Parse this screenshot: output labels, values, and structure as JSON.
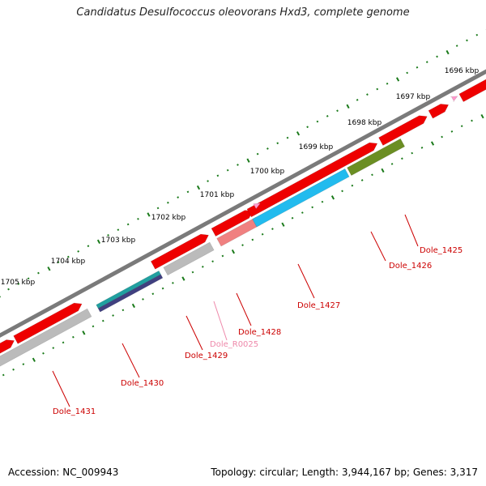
{
  "title": "Candidatus Desulfococcus oleovorans Hxd3, complete genome",
  "footer": {
    "accession": "Accession: NC_009943",
    "summary": "Topology: circular; Length: 3,944,167 bp; Genes: 3,317"
  },
  "colors": {
    "backbone": "#7a7a7a",
    "cds": "#ee0000",
    "pseudo": "#bbbbbb",
    "rna": "#ff99cc",
    "cyan": "#22bbee",
    "olive": "#6b8e23",
    "teal": "#20a0a0",
    "navy": "#404080",
    "pink_light": "#f08080",
    "ticks": "#1a7a1a",
    "label_red": "#cc0000",
    "label_pink": "#ee88aa"
  },
  "kbp_labels": [
    "1696 kbp",
    "1697 kbp",
    "1698 kbp",
    "1699 kbp",
    "1700 kbp",
    "1701 kbp",
    "1702 kbp",
    "1703 kbp",
    "1704 kbp",
    "1705 kbp"
  ],
  "genes": [
    {
      "label": "Dole_1425",
      "type": "cds"
    },
    {
      "label": "Dole_1426",
      "type": "cds"
    },
    {
      "label": "Dole_1427",
      "type": "cds"
    },
    {
      "label": "Dole_1428",
      "type": "cds"
    },
    {
      "label": "Dole_R0025",
      "type": "rna"
    },
    {
      "label": "Dole_1429",
      "type": "cds"
    },
    {
      "label": "Dole_1430",
      "type": "cds"
    },
    {
      "label": "Dole_1431",
      "type": "cds"
    }
  ]
}
